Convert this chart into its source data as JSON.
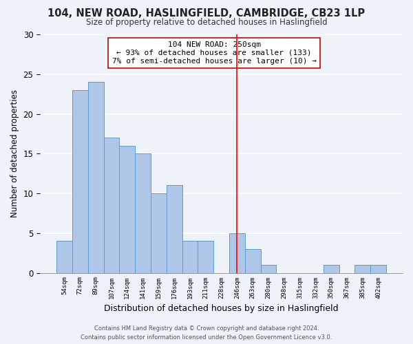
{
  "title": "104, NEW ROAD, HASLINGFIELD, CAMBRIDGE, CB23 1LP",
  "subtitle": "Size of property relative to detached houses in Haslingfield",
  "xlabel": "Distribution of detached houses by size in Haslingfield",
  "ylabel": "Number of detached properties",
  "bar_labels": [
    "54sqm",
    "72sqm",
    "89sqm",
    "107sqm",
    "124sqm",
    "141sqm",
    "159sqm",
    "176sqm",
    "193sqm",
    "211sqm",
    "228sqm",
    "246sqm",
    "263sqm",
    "280sqm",
    "298sqm",
    "315sqm",
    "332sqm",
    "350sqm",
    "367sqm",
    "385sqm",
    "402sqm"
  ],
  "bar_values": [
    4,
    23,
    24,
    17,
    16,
    15,
    10,
    11,
    4,
    4,
    0,
    5,
    3,
    1,
    0,
    0,
    0,
    1,
    0,
    1,
    1
  ],
  "bar_color": "#aec6e8",
  "bar_edge_color": "#5b9bd5",
  "vline_x": 11,
  "vline_color": "red",
  "ylim": [
    0,
    30
  ],
  "yticks": [
    0,
    5,
    10,
    15,
    20,
    25,
    30
  ],
  "annotation_title": "104 NEW ROAD: 250sqm",
  "annotation_line1": "← 93% of detached houses are smaller (133)",
  "annotation_line2": "7% of semi-detached houses are larger (10) →",
  "footer_line1": "Contains HM Land Registry data © Crown copyright and database right 2024.",
  "footer_line2": "Contains public sector information licensed under the Open Government Licence v3.0.",
  "background_color": "#eef2f9"
}
